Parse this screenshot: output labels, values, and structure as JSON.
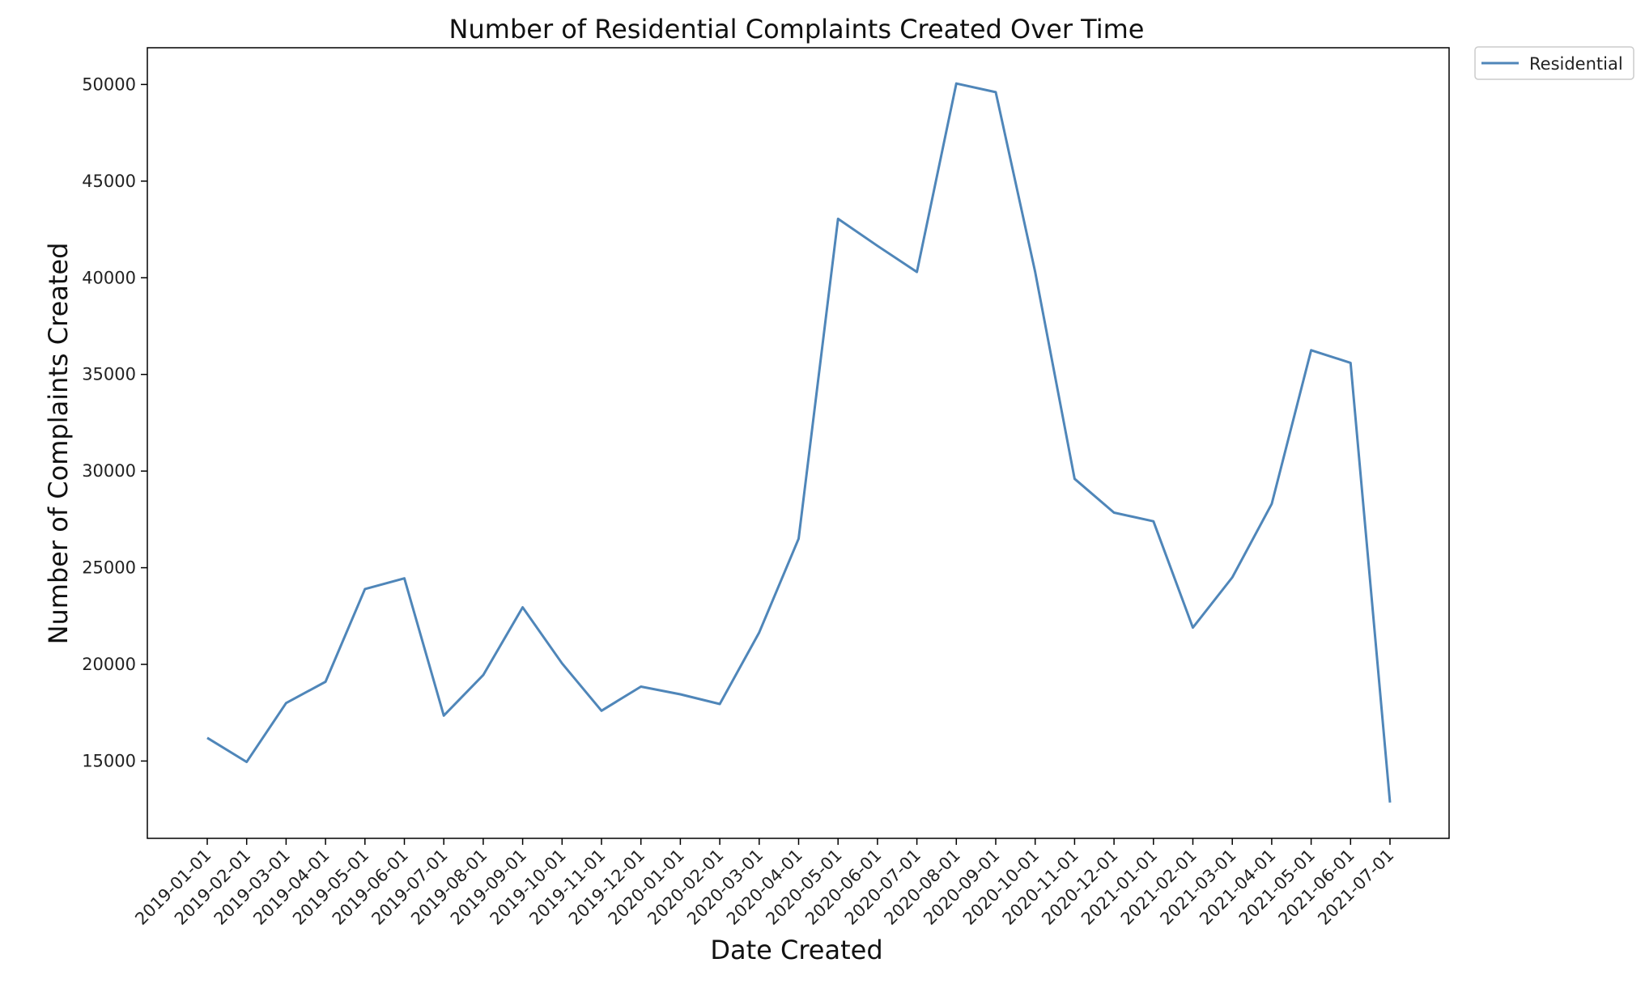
{
  "chart_data": {
    "type": "line",
    "title": "Number of Residential Complaints Created Over Time",
    "xlabel": "Date Created",
    "ylabel": "Number of Complaints Created",
    "categories": [
      "2019-01-01",
      "2019-02-01",
      "2019-03-01",
      "2019-04-01",
      "2019-05-01",
      "2019-06-01",
      "2019-07-01",
      "2019-08-01",
      "2019-09-01",
      "2019-10-01",
      "2019-11-01",
      "2019-12-01",
      "2020-01-01",
      "2020-02-01",
      "2020-03-01",
      "2020-04-01",
      "2020-05-01",
      "2020-06-01",
      "2020-07-01",
      "2020-08-01",
      "2020-09-01",
      "2020-10-01",
      "2020-11-01",
      "2020-12-01",
      "2021-01-01",
      "2021-02-01",
      "2021-03-01",
      "2021-04-01",
      "2021-05-01",
      "2021-06-01",
      "2021-07-01"
    ],
    "series": [
      {
        "name": "Residential",
        "color": "#4f86b9",
        "values": [
          16200,
          14950,
          18000,
          19100,
          23900,
          24450,
          17350,
          19450,
          22950,
          20050,
          17600,
          18850,
          18450,
          17950,
          21650,
          26500,
          43050,
          41650,
          40300,
          50050,
          49600,
          40300,
          29600,
          27850,
          27400,
          21900,
          24500,
          28300,
          36250,
          35600,
          12850
        ]
      }
    ],
    "yticks": [
      15000,
      20000,
      25000,
      30000,
      35000,
      40000,
      45000,
      50000
    ],
    "ylim": [
      11000,
      51900
    ],
    "grid": false,
    "legend": "outside-top-right"
  }
}
